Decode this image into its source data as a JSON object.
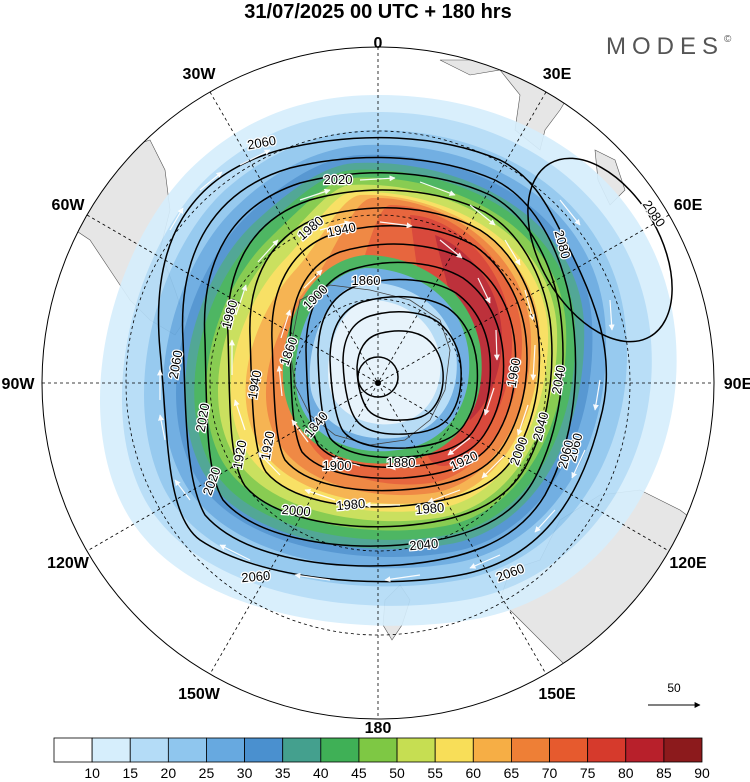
{
  "title": "31/07/2025  00 UTC  + 180 hrs",
  "brand": "MODES",
  "brand_mark": "©",
  "projection": "south-polar-stereographic",
  "longitude_labels": [
    {
      "text": "0",
      "lon": 0
    },
    {
      "text": "30E",
      "lon": 30
    },
    {
      "text": "60E",
      "lon": 60
    },
    {
      "text": "90E",
      "lon": 90
    },
    {
      "text": "120E",
      "lon": 120
    },
    {
      "text": "150E",
      "lon": 150
    },
    {
      "text": "180",
      "lon": 180
    },
    {
      "text": "150W",
      "lon": -150
    },
    {
      "text": "120W",
      "lon": -120
    },
    {
      "text": "90W",
      "lon": -90
    },
    {
      "text": "60W",
      "lon": -60
    },
    {
      "text": "30W",
      "lon": -30
    }
  ],
  "contour_labels": [
    "2060",
    "2020",
    "2060",
    "2080",
    "2080",
    "1940",
    "1980",
    "1860",
    "1980",
    "2040",
    "1900",
    "2060",
    "1940",
    "1860",
    "1960",
    "1920",
    "2040",
    "1840",
    "2020",
    "1920",
    "2000",
    "1900",
    "1880",
    "1920",
    "2060",
    "2020",
    "1980",
    "1980",
    "2000",
    "2040",
    "2060",
    "2060"
  ],
  "reference_vector": {
    "label": "50"
  },
  "colorbar": {
    "labels": [
      "10",
      "15",
      "20",
      "25",
      "30",
      "35",
      "40",
      "45",
      "50",
      "55",
      "60",
      "65",
      "70",
      "75",
      "80",
      "85",
      "90"
    ],
    "colors": [
      "#ffffff",
      "#d6eefc",
      "#b4dcf7",
      "#8fc6ee",
      "#67a9e0",
      "#4a90cf",
      "#44a08e",
      "#3fb056",
      "#7ec844",
      "#c6de52",
      "#f8de58",
      "#f6ae45",
      "#ee7f36",
      "#e65a2e",
      "#d63a2c",
      "#b8202b",
      "#8c1a1c"
    ]
  },
  "colors": {
    "land": "#e6e6e6",
    "coast": "#555555",
    "vector": "#ffffff",
    "contour": "#000000"
  }
}
